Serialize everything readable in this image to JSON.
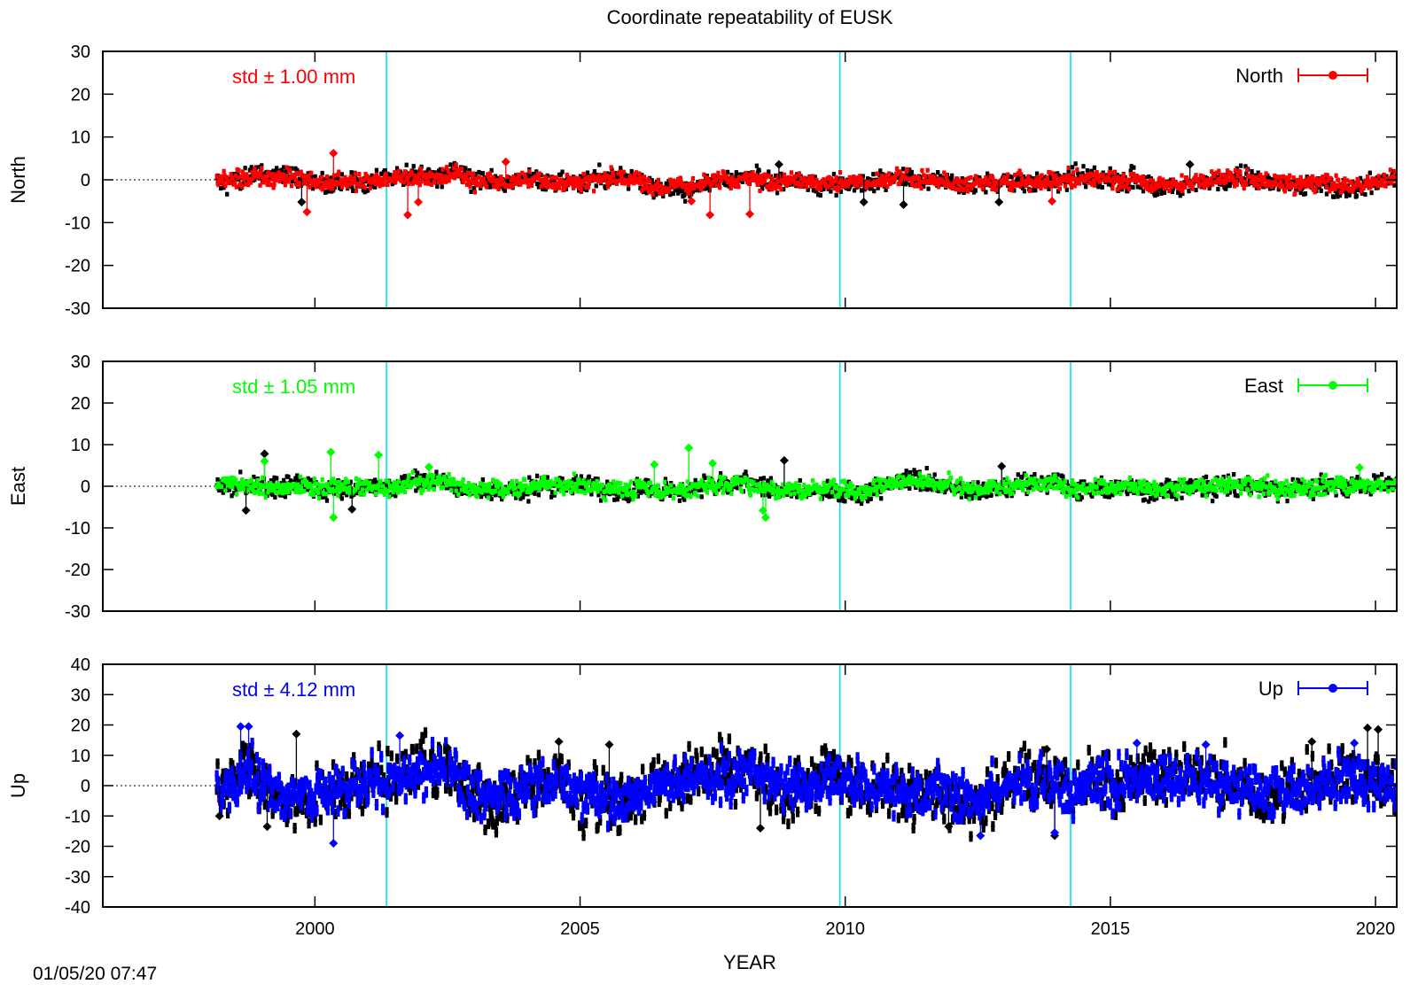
{
  "chart_data": {
    "type": "scatter",
    "title": "Coordinate repeatability of EUSK",
    "xlabel": "YEAR",
    "xlim": [
      1996,
      2020.4
    ],
    "xticks": [
      2000,
      2005,
      2010,
      2015,
      2020
    ],
    "vertical_lines": [
      2001.35,
      2009.9,
      2014.25
    ],
    "data_start": 1998.15,
    "data_end": 2020.4,
    "grid": false,
    "legend_position": "top-right",
    "panels": [
      {
        "ylabel": "North",
        "ylim": [
          -30,
          30
        ],
        "yticks": [
          30,
          20,
          10,
          0,
          -10,
          -20,
          -30
        ],
        "std_label": "std ± 1.00 mm",
        "legend": "North",
        "color": "#ff0000",
        "spread": 1.0,
        "outliers": [
          [
            1999.85,
            -7.5
          ],
          [
            2001.75,
            -8.2
          ],
          [
            2001.95,
            -5.2
          ],
          [
            2007.1,
            -5.0
          ],
          [
            2007.45,
            -8.2
          ],
          [
            2008.2,
            -8.0
          ],
          [
            2000.35,
            6.2
          ],
          [
            2003.6,
            4.2
          ],
          [
            2013.9,
            -5.0
          ]
        ],
        "black_outliers": [
          [
            1999.75,
            -5.2
          ],
          [
            2010.35,
            -5.2
          ],
          [
            2011.1,
            -5.8
          ],
          [
            2012.9,
            -5.2
          ],
          [
            2016.5,
            3.6
          ],
          [
            2008.75,
            3.6
          ]
        ]
      },
      {
        "ylabel": "East",
        "ylim": [
          -30,
          30
        ],
        "yticks": [
          30,
          20,
          10,
          0,
          -10,
          -20,
          -30
        ],
        "std_label": "std ± 1.05 mm",
        "legend": "East",
        "color": "#00ff00",
        "spread": 1.05,
        "outliers": [
          [
            1999.05,
            6.0
          ],
          [
            2000.3,
            8.2
          ],
          [
            2000.35,
            -7.5
          ],
          [
            2001.2,
            7.5
          ],
          [
            2002.15,
            4.6
          ],
          [
            2006.4,
            5.2
          ],
          [
            2007.05,
            9.2
          ],
          [
            2007.5,
            5.5
          ],
          [
            2008.5,
            -7.5
          ],
          [
            2019.7,
            4.5
          ],
          [
            2008.45,
            -5.8
          ]
        ],
        "black_outliers": [
          [
            1998.7,
            -5.8
          ],
          [
            1999.05,
            7.8
          ],
          [
            2000.7,
            -5.5
          ],
          [
            2008.85,
            6.2
          ],
          [
            2012.95,
            4.8
          ]
        ]
      },
      {
        "ylabel": "Up",
        "ylim": [
          -40,
          40
        ],
        "yticks": [
          40,
          30,
          20,
          10,
          0,
          -10,
          -20,
          -30,
          -40
        ],
        "std_label": "std ± 4.12 mm",
        "legend": "Up",
        "color": "#0000ff",
        "spread": 4.12,
        "outliers": [
          [
            1998.6,
            19.5
          ],
          [
            1998.75,
            19.5
          ],
          [
            2000.35,
            -19.0
          ],
          [
            2001.6,
            16.5
          ],
          [
            2012.55,
            -16.5
          ],
          [
            2013.95,
            -15.5
          ],
          [
            2015.5,
            14.0
          ],
          [
            2016.8,
            13.5
          ],
          [
            2019.6,
            14.0
          ]
        ],
        "black_outliers": [
          [
            1998.2,
            -10.0
          ],
          [
            1999.1,
            -13.5
          ],
          [
            1999.65,
            17.0
          ],
          [
            2002.5,
            12.5
          ],
          [
            2004.6,
            14.5
          ],
          [
            2005.55,
            13.5
          ],
          [
            2008.4,
            -14.0
          ],
          [
            2011.95,
            -13.5
          ],
          [
            2013.8,
            12.0
          ],
          [
            2013.95,
            -16.5
          ],
          [
            2019.85,
            19.0
          ],
          [
            2020.05,
            18.5
          ],
          [
            2018.8,
            14.5
          ]
        ]
      }
    ]
  },
  "timestamp": "01/05/20 07:47"
}
